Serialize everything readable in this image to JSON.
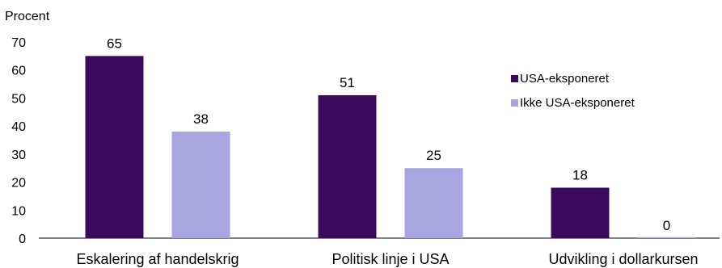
{
  "chart_data": {
    "type": "bar",
    "ylabel": "Procent",
    "ylim": [
      0,
      70
    ],
    "yticks": [
      0,
      10,
      20,
      30,
      40,
      50,
      60,
      70
    ],
    "categories": [
      "Eskalering af handelskrig",
      "Politisk linje i USA",
      "Udvikling i dollarkursen"
    ],
    "series": [
      {
        "name": "USA-eksponeret",
        "color": "#3c0a5c",
        "values": [
          65,
          51,
          18
        ]
      },
      {
        "name": "Ikke USA-eksponeret",
        "color": "#a9a5e0",
        "values": [
          38,
          25,
          0
        ]
      }
    ],
    "grid": false,
    "legend": "right"
  }
}
